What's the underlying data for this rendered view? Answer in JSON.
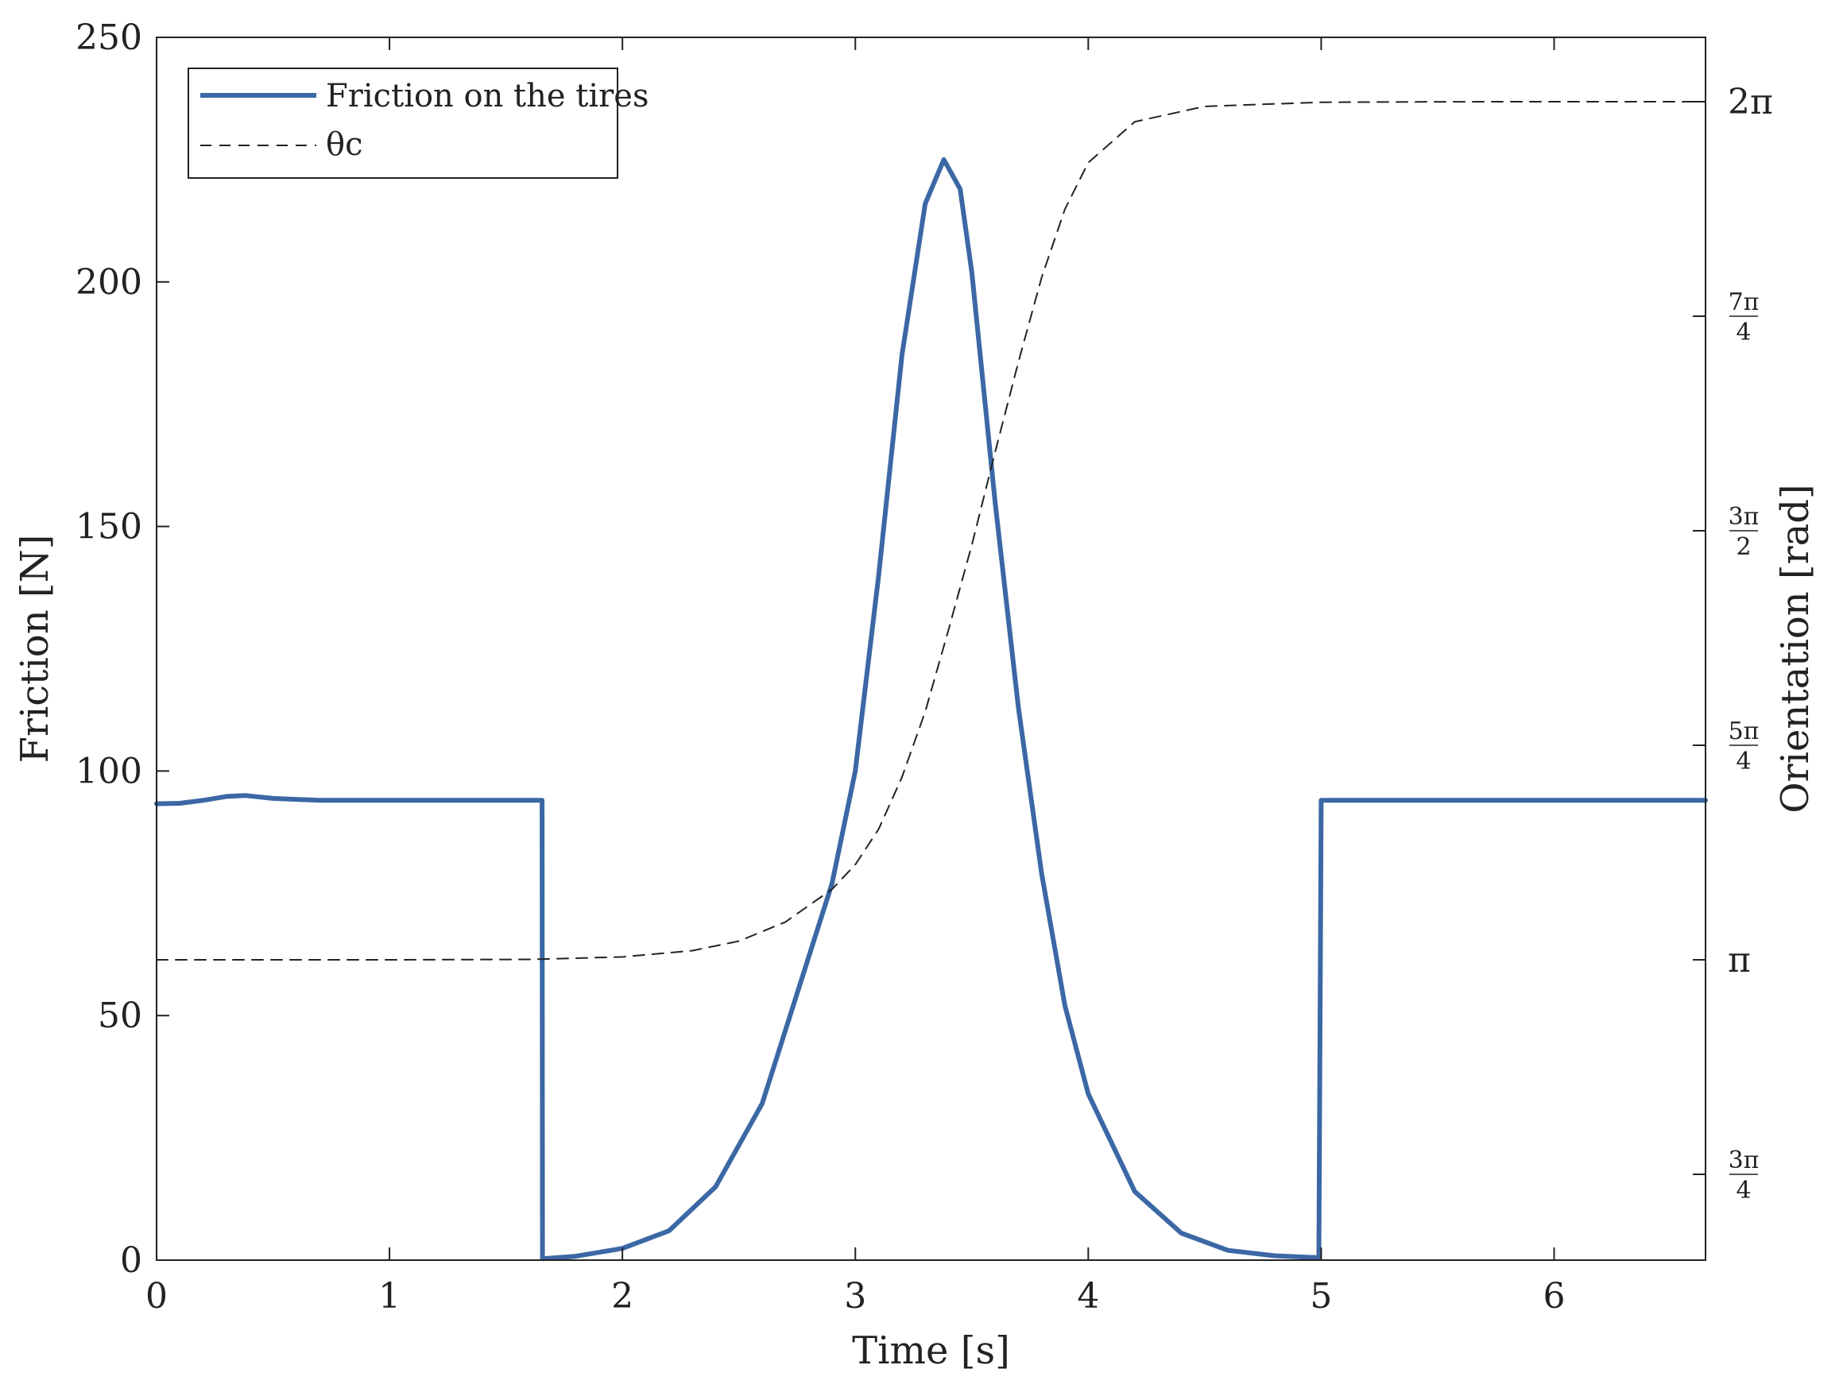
{
  "chart_data": {
    "type": "line",
    "xlabel": "Time [s]",
    "ylabel_left": "Friction [N]",
    "ylabel_right": "Orientation [rad]",
    "xlim": [
      0,
      6.65
    ],
    "ylim_left": [
      0,
      250
    ],
    "ylim_right": [
      2.042,
      6.5188
    ],
    "xticks": [
      0,
      1,
      2,
      3,
      4,
      5,
      6
    ],
    "yticks_left": [
      0,
      50,
      100,
      150,
      200,
      250
    ],
    "yticks_right": [
      {
        "value": 2.3562,
        "label_num": "3π",
        "label_den": "4"
      },
      {
        "value": 3.1416,
        "label": "π"
      },
      {
        "value": 3.927,
        "label_num": "5π",
        "label_den": "4"
      },
      {
        "value": 4.7124,
        "label_num": "3π",
        "label_den": "2"
      },
      {
        "value": 5.4978,
        "label_num": "7π",
        "label_den": "4"
      },
      {
        "value": 6.2832,
        "label": "2π"
      }
    ],
    "grid": false,
    "legend_position": "top-left",
    "series": [
      {
        "name": "Friction on the tires",
        "axis": "left",
        "color": "#3b68a5",
        "style": "solid",
        "x": [
          0,
          0.1,
          0.2,
          0.3,
          0.38,
          0.5,
          0.7,
          1.0,
          1.3,
          1.655,
          1.657,
          1.8,
          2.0,
          2.2,
          2.4,
          2.6,
          2.8,
          2.9,
          3.0,
          3.1,
          3.2,
          3.3,
          3.38,
          3.45,
          3.5,
          3.6,
          3.7,
          3.8,
          3.9,
          4.0,
          4.2,
          4.4,
          4.6,
          4.8,
          4.99,
          5.0,
          5.01,
          5.5,
          6.0,
          6.65
        ],
        "y": [
          93.3,
          93.4,
          94.0,
          94.8,
          95.0,
          94.4,
          94.0,
          94.0,
          94.0,
          94.0,
          0.3,
          0.8,
          2.4,
          6.0,
          15.0,
          32.0,
          62.0,
          77.0,
          100.0,
          140.0,
          185.0,
          216.0,
          225.0,
          219.0,
          202.0,
          155.0,
          113.0,
          79.0,
          52.0,
          34.0,
          14.0,
          5.5,
          2.0,
          0.9,
          0.5,
          94.0,
          94.0,
          94.0,
          94.0,
          94.0
        ]
      },
      {
        "name": "θc",
        "axis": "right",
        "color": "#222222",
        "style": "dashed",
        "x": [
          0,
          1.0,
          1.6,
          2.0,
          2.3,
          2.5,
          2.7,
          2.9,
          3.0,
          3.1,
          3.2,
          3.3,
          3.4,
          3.5,
          3.6,
          3.7,
          3.8,
          3.9,
          4.0,
          4.2,
          4.5,
          5.0,
          5.5,
          6.0,
          6.65
        ],
        "y": [
          3.1416,
          3.1416,
          3.143,
          3.152,
          3.175,
          3.21,
          3.28,
          3.4,
          3.49,
          3.62,
          3.81,
          4.05,
          4.35,
          4.66,
          5.0,
          5.33,
          5.64,
          5.89,
          6.06,
          6.21,
          6.266,
          6.281,
          6.283,
          6.2832,
          6.2832
        ]
      }
    ]
  }
}
